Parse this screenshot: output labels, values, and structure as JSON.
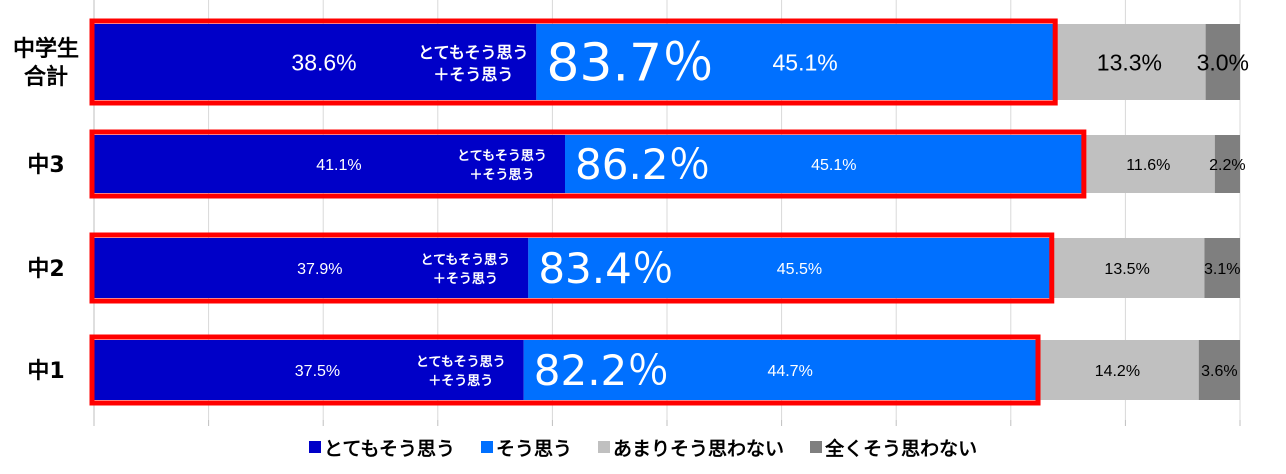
{
  "chart_data": {
    "type": "bar",
    "orientation": "horizontal",
    "stacked": true,
    "percent": true,
    "grid": true,
    "xlim": [
      0,
      100
    ],
    "categories": [
      "中学生\n合計",
      "中3",
      "中2",
      "中1"
    ],
    "series": [
      {
        "name": "とてもそう思う",
        "color": "#0000c8",
        "values": [
          38.6,
          41.1,
          37.9,
          37.5
        ],
        "labels": [
          "38.6%",
          "41.1%",
          "37.9%",
          "37.5%"
        ]
      },
      {
        "name": "そう思う",
        "color": "#0070ff",
        "values": [
          45.1,
          45.1,
          45.5,
          44.7
        ],
        "labels": [
          "45.1%",
          "45.1%",
          "45.5%",
          "44.7%"
        ]
      },
      {
        "name": "あまりそう思わない",
        "color": "#c0c0c0",
        "values": [
          13.3,
          11.6,
          13.5,
          14.2
        ],
        "labels": [
          "13.3%",
          "11.6%",
          "13.5%",
          "14.2%"
        ]
      },
      {
        "name": "全くそう思わない",
        "color": "#7f7f7f",
        "values": [
          3.0,
          2.2,
          3.1,
          3.6
        ],
        "labels": [
          "3.0%",
          "2.2%",
          "3.1%",
          "3.6%"
        ]
      }
    ],
    "highlight": {
      "box_color": "#ff0000",
      "caption_line1": "とてもそう思う",
      "caption_line2": "＋そう思う",
      "totals": [
        83.7,
        86.2,
        83.4,
        82.2
      ],
      "total_labels": [
        "83.7％",
        "86.2％",
        "83.4％",
        "82.2％"
      ]
    },
    "legend": {
      "position": "bottom"
    }
  }
}
